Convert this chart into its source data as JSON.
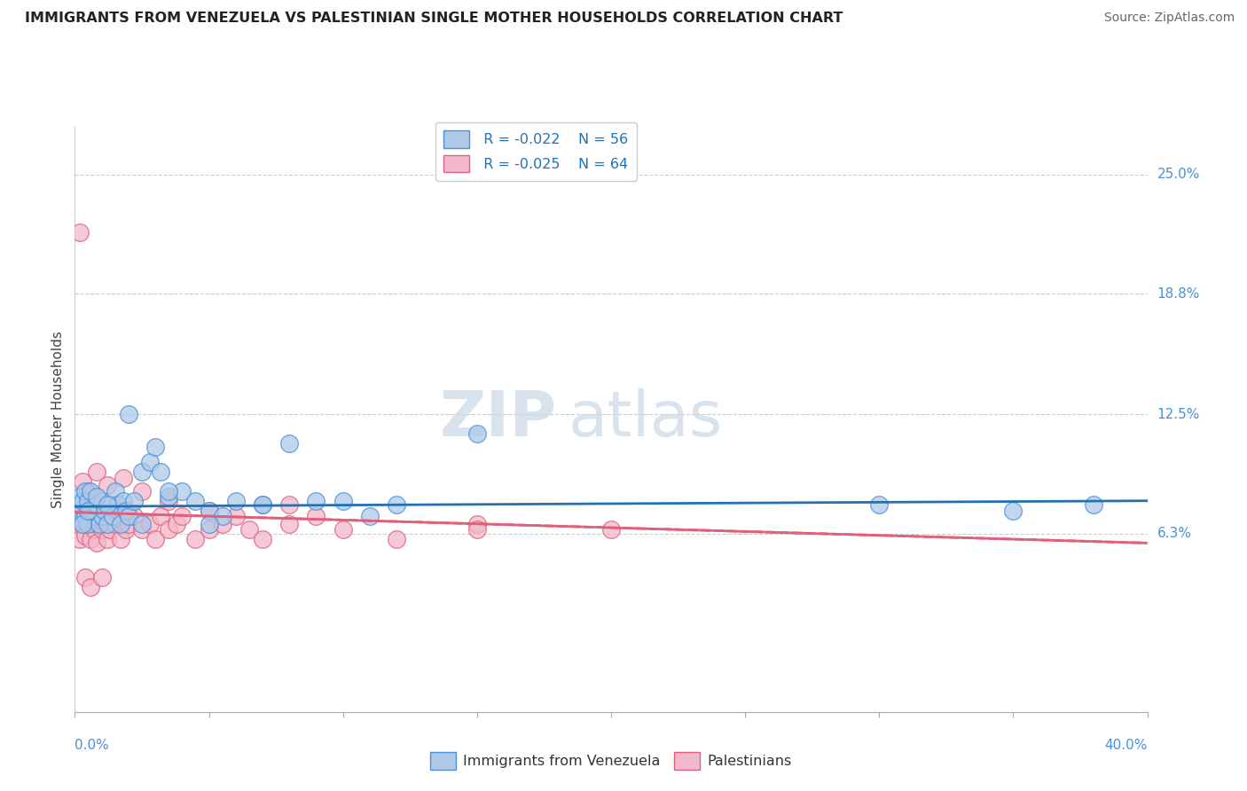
{
  "title": "IMMIGRANTS FROM VENEZUELA VS PALESTINIAN SINGLE MOTHER HOUSEHOLDS CORRELATION CHART",
  "source": "Source: ZipAtlas.com",
  "ylabel": "Single Mother Households",
  "ytick_labels": [
    "6.3%",
    "12.5%",
    "18.8%",
    "25.0%"
  ],
  "ytick_values": [
    0.063,
    0.125,
    0.188,
    0.25
  ],
  "xmin": 0.0,
  "xmax": 0.4,
  "ymin": -0.03,
  "ymax": 0.275,
  "legend_blue_r": "R = -0.022",
  "legend_blue_n": "N = 56",
  "legend_pink_r": "R = -0.025",
  "legend_pink_n": "N = 64",
  "blue_label": "Immigrants from Venezuela",
  "pink_label": "Palestinians",
  "blue_fill": "#aec9e8",
  "pink_fill": "#f4b8cc",
  "blue_edge": "#4a90d9",
  "pink_edge": "#e0607a",
  "watermark_zip": "ZIP",
  "watermark_atlas": "atlas",
  "blue_line_color": "#2171b5",
  "pink_line_color": "#d6336c",
  "blue_scatter_x": [
    0.001,
    0.002,
    0.002,
    0.003,
    0.003,
    0.004,
    0.004,
    0.005,
    0.005,
    0.006,
    0.006,
    0.007,
    0.008,
    0.009,
    0.01,
    0.01,
    0.011,
    0.012,
    0.013,
    0.014,
    0.015,
    0.016,
    0.017,
    0.018,
    0.019,
    0.02,
    0.022,
    0.025,
    0.028,
    0.03,
    0.032,
    0.035,
    0.04,
    0.045,
    0.05,
    0.055,
    0.06,
    0.07,
    0.08,
    0.09,
    0.1,
    0.12,
    0.15,
    0.3,
    0.35,
    0.38,
    0.003,
    0.005,
    0.008,
    0.012,
    0.02,
    0.025,
    0.035,
    0.05,
    0.07,
    0.11
  ],
  "blue_scatter_y": [
    0.075,
    0.078,
    0.082,
    0.07,
    0.08,
    0.072,
    0.085,
    0.068,
    0.08,
    0.075,
    0.085,
    0.072,
    0.078,
    0.068,
    0.08,
    0.072,
    0.075,
    0.068,
    0.078,
    0.072,
    0.085,
    0.078,
    0.068,
    0.08,
    0.075,
    0.072,
    0.08,
    0.095,
    0.1,
    0.108,
    0.095,
    0.082,
    0.085,
    0.08,
    0.075,
    0.072,
    0.08,
    0.078,
    0.11,
    0.08,
    0.08,
    0.078,
    0.115,
    0.078,
    0.075,
    0.078,
    0.068,
    0.075,
    0.082,
    0.078,
    0.125,
    0.068,
    0.085,
    0.068,
    0.078,
    0.072
  ],
  "pink_scatter_x": [
    0.001,
    0.001,
    0.002,
    0.002,
    0.003,
    0.003,
    0.004,
    0.004,
    0.005,
    0.005,
    0.006,
    0.006,
    0.007,
    0.007,
    0.008,
    0.008,
    0.009,
    0.01,
    0.01,
    0.011,
    0.012,
    0.012,
    0.013,
    0.014,
    0.015,
    0.016,
    0.017,
    0.018,
    0.019,
    0.02,
    0.022,
    0.025,
    0.028,
    0.03,
    0.032,
    0.035,
    0.038,
    0.04,
    0.045,
    0.05,
    0.055,
    0.06,
    0.065,
    0.07,
    0.08,
    0.09,
    0.1,
    0.12,
    0.15,
    0.2,
    0.003,
    0.005,
    0.008,
    0.012,
    0.018,
    0.025,
    0.035,
    0.05,
    0.08,
    0.15,
    0.002,
    0.004,
    0.006,
    0.01
  ],
  "pink_scatter_y": [
    0.068,
    0.075,
    0.06,
    0.072,
    0.068,
    0.078,
    0.072,
    0.062,
    0.068,
    0.075,
    0.06,
    0.072,
    0.065,
    0.078,
    0.068,
    0.058,
    0.072,
    0.065,
    0.078,
    0.068,
    0.072,
    0.06,
    0.065,
    0.07,
    0.068,
    0.075,
    0.06,
    0.072,
    0.065,
    0.068,
    0.072,
    0.065,
    0.068,
    0.06,
    0.072,
    0.065,
    0.068,
    0.072,
    0.06,
    0.065,
    0.068,
    0.072,
    0.065,
    0.06,
    0.068,
    0.072,
    0.065,
    0.06,
    0.068,
    0.065,
    0.09,
    0.085,
    0.095,
    0.088,
    0.092,
    0.085,
    0.08,
    0.075,
    0.078,
    0.065,
    0.22,
    0.04,
    0.035,
    0.04
  ],
  "blue_regline_x": [
    0.0,
    0.4
  ],
  "blue_regline_y": [
    0.077,
    0.08
  ],
  "pink_regline_x": [
    0.0,
    0.4
  ],
  "pink_regline_y": [
    0.074,
    0.058
  ]
}
